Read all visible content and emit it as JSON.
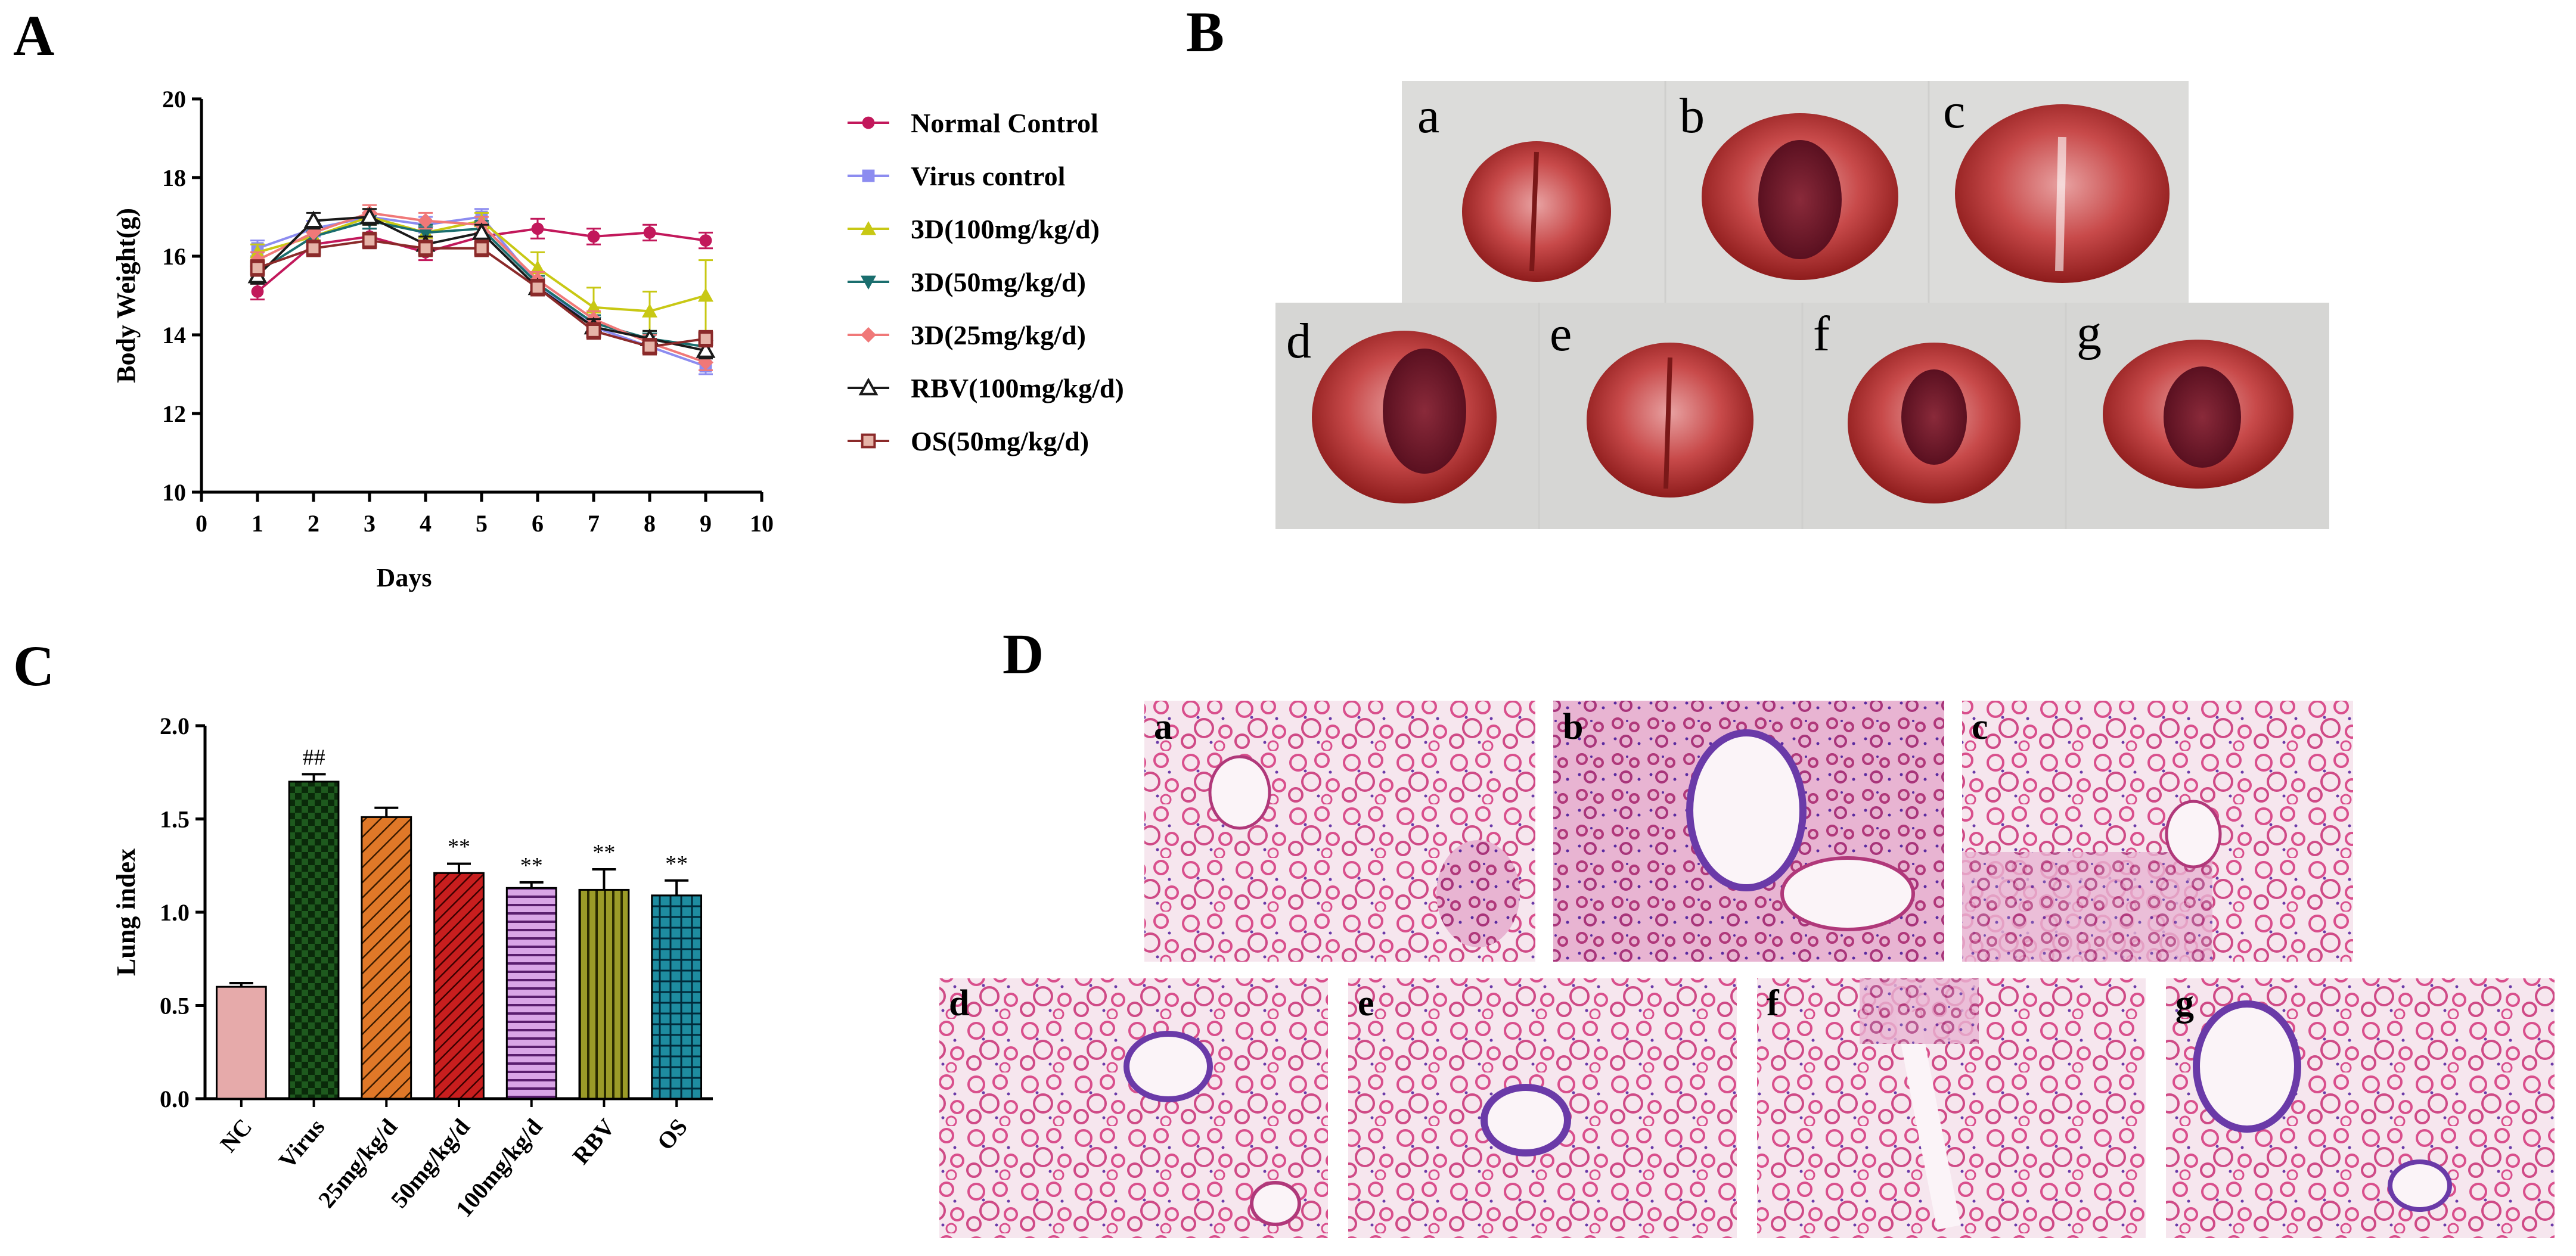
{
  "panels": {
    "A": "A",
    "B": "B",
    "C": "C",
    "D": "D"
  },
  "photo_letters": [
    "a",
    "b",
    "c",
    "d",
    "e",
    "f",
    "g"
  ],
  "chart_data": [
    {
      "type": "line",
      "panel": "A",
      "xlabel": "Days",
      "ylabel": "Body Weight(g)",
      "xlim": [
        0,
        10
      ],
      "ylim": [
        10,
        20
      ],
      "xticks": [
        "0",
        "1",
        "2",
        "3",
        "4",
        "5",
        "6",
        "7",
        "8",
        "9",
        "10"
      ],
      "yticks": [
        "10",
        "12",
        "14",
        "16",
        "18",
        "20"
      ],
      "x": [
        1,
        2,
        3,
        4,
        5,
        6,
        7,
        8,
        9
      ],
      "legend_position": "right",
      "series": [
        {
          "name": "Normal Control",
          "color": "#c2185b",
          "marker": "circle",
          "values": [
            15.1,
            16.3,
            16.5,
            16.1,
            16.5,
            16.7,
            16.5,
            16.6,
            16.4
          ],
          "errors": [
            0.2,
            0.2,
            0.2,
            0.2,
            0.2,
            0.25,
            0.2,
            0.2,
            0.2
          ]
        },
        {
          "name": "Virus control",
          "color": "#8c8cf0",
          "marker": "square",
          "values": [
            16.2,
            16.7,
            17.0,
            16.8,
            17.0,
            15.3,
            14.2,
            13.7,
            13.2
          ],
          "errors": [
            0.2,
            0.2,
            0.2,
            0.2,
            0.2,
            0.2,
            0.2,
            0.2,
            0.2
          ]
        },
        {
          "name": "3D(100mg/kg/d)",
          "color": "#c8c814",
          "marker": "triangle-up",
          "values": [
            16.1,
            16.5,
            17.0,
            16.6,
            16.9,
            15.7,
            14.7,
            14.6,
            15.0
          ],
          "errors": [
            0.2,
            0.2,
            0.2,
            0.2,
            0.2,
            0.4,
            0.5,
            0.5,
            0.9
          ]
        },
        {
          "name": "3D(50mg/kg/d)",
          "color": "#1a6e6e",
          "marker": "triangle-down",
          "values": [
            15.6,
            16.5,
            16.9,
            16.6,
            16.7,
            15.3,
            14.3,
            13.9,
            13.7
          ],
          "errors": [
            0.2,
            0.2,
            0.2,
            0.2,
            0.2,
            0.2,
            0.2,
            0.2,
            0.2
          ]
        },
        {
          "name": "3D(25mg/kg/d)",
          "color": "#f07878",
          "marker": "diamond",
          "values": [
            15.9,
            16.6,
            17.1,
            16.9,
            16.8,
            15.4,
            14.4,
            13.8,
            13.3
          ],
          "errors": [
            0.2,
            0.2,
            0.2,
            0.2,
            0.2,
            0.2,
            0.2,
            0.2,
            0.2
          ]
        },
        {
          "name": "RBV(100mg/kg/d)",
          "color": "#1a1a1a",
          "marker": "triangle-open",
          "values": [
            15.5,
            16.9,
            17.0,
            16.3,
            16.6,
            15.2,
            14.2,
            13.9,
            13.6
          ],
          "errors": [
            0.2,
            0.2,
            0.2,
            0.2,
            0.2,
            0.2,
            0.2,
            0.2,
            0.2
          ]
        },
        {
          "name": "OS(50mg/kg/d)",
          "color": "#8b2a2a",
          "fill": "#e6b4a8",
          "marker": "square-open",
          "values": [
            15.7,
            16.2,
            16.4,
            16.2,
            16.2,
            15.2,
            14.1,
            13.7,
            13.9
          ],
          "errors": [
            0.2,
            0.2,
            0.2,
            0.2,
            0.2,
            0.2,
            0.2,
            0.2,
            0.2
          ]
        }
      ]
    },
    {
      "type": "bar",
      "panel": "C",
      "ylabel": "Lung index",
      "ylim": [
        0,
        2.0
      ],
      "yticks": [
        "0.0",
        "0.5",
        "1.0",
        "1.5",
        "2.0"
      ],
      "categories": [
        "NC",
        "Virus",
        "25mg/kg/d",
        "50mg/kg/d",
        "100mg/kg/d",
        "RBV",
        "OS"
      ],
      "values": [
        0.6,
        1.7,
        1.51,
        1.21,
        1.13,
        1.12,
        1.09
      ],
      "errors": [
        0.02,
        0.04,
        0.05,
        0.05,
        0.03,
        0.11,
        0.08
      ],
      "annotations": [
        "",
        "##",
        "",
        "**",
        "**",
        "**",
        "**"
      ],
      "colors": [
        "#e6aaaa",
        "#1e5a1e",
        "#e07828",
        "#c81e1e",
        "#c88cd8",
        "#8c8c1e",
        "#1e8ca0"
      ],
      "patterns": [
        "solid",
        "checker",
        "diagonal",
        "diagonal-dense",
        "horizontal",
        "vertical",
        "grid"
      ]
    }
  ]
}
